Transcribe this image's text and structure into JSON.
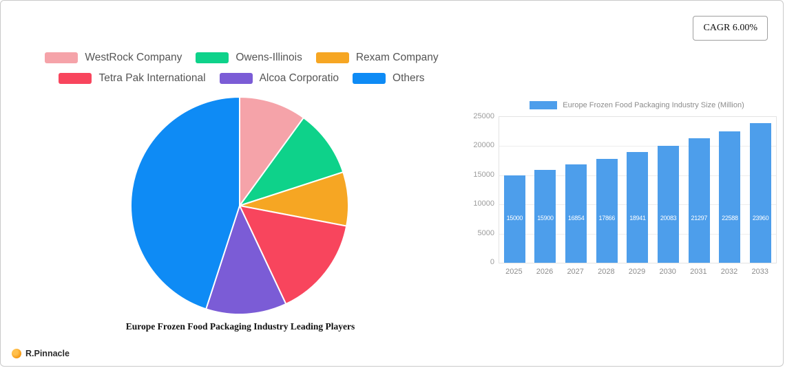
{
  "page": {
    "cagr_label": "CAGR 6.00%",
    "brand": "R.Pinnacle"
  },
  "chart_data": [
    {
      "type": "pie",
      "title": "Europe Frozen Food Packaging Industry Leading Players",
      "legend_position": "top",
      "slices": [
        {
          "label": "WestRock Company",
          "value": 10,
          "color": "#f5a3a9"
        },
        {
          "label": "Owens-Illinois",
          "value": 10,
          "color": "#0ed28a"
        },
        {
          "label": "Rexam Company",
          "value": 8,
          "color": "#f6a623"
        },
        {
          "label": "Tetra Pak International",
          "value": 15,
          "color": "#f8455d"
        },
        {
          "label": "Alcoa Corporatio",
          "value": 12,
          "color": "#7b5cd6"
        },
        {
          "label": "Others",
          "value": 45,
          "color": "#0e8bf5"
        }
      ]
    },
    {
      "type": "bar",
      "legend": "Europe Frozen Food Packaging Industry Size (Million)",
      "bar_color": "#4d9eeb",
      "categories": [
        "2025",
        "2026",
        "2027",
        "2028",
        "2029",
        "2030",
        "2031",
        "2032",
        "2033"
      ],
      "values": [
        15000,
        15900,
        16854,
        17866,
        18941,
        20083,
        21297,
        22588,
        23960
      ],
      "ylabel": "",
      "xlabel": "",
      "ylim": [
        0,
        25000
      ],
      "yticks": [
        0,
        5000,
        10000,
        15000,
        20000,
        25000
      ],
      "grid": true,
      "legend_position": "top"
    }
  ]
}
